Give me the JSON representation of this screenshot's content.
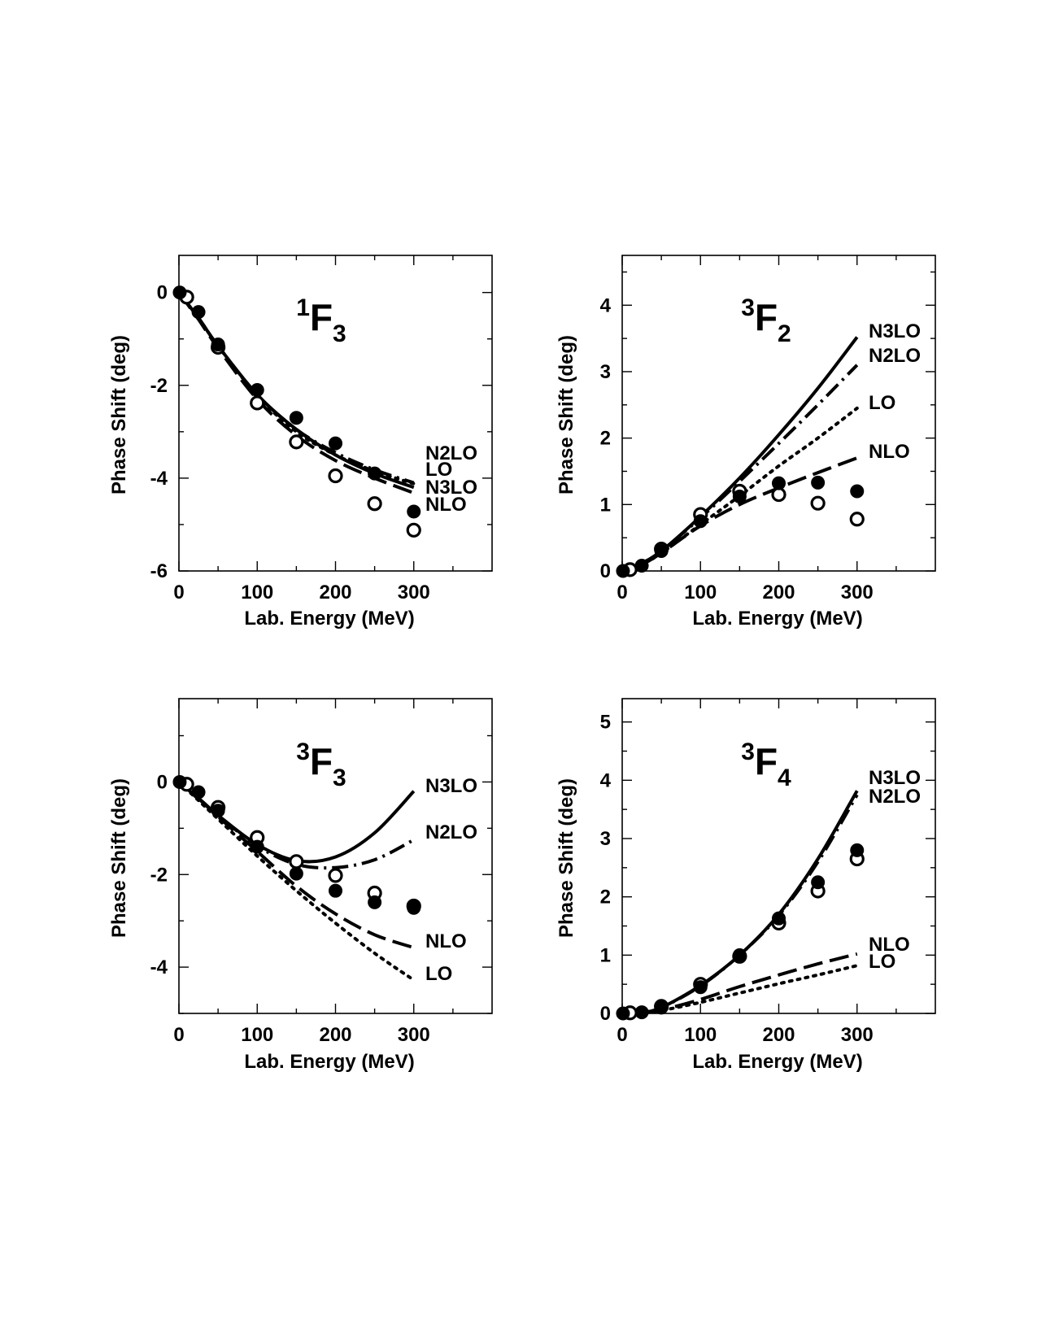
{
  "chart_data": [
    {
      "type": "line",
      "title_main": "F",
      "title_sup": "1",
      "title_sub": "3",
      "xlabel": "Lab. Energy (MeV)",
      "ylabel": "Phase Shift (deg)",
      "xlim": [
        0,
        400
      ],
      "ylim": [
        -6,
        0.8
      ],
      "xticks": [
        0,
        100,
        200,
        300
      ],
      "xticklabels": [
        "0",
        "100",
        "200",
        "300"
      ],
      "yticks": [
        -6,
        -4,
        -2,
        0
      ],
      "yticklabels": [
        "-6",
        "-4",
        "-2",
        "0"
      ],
      "xminor": [
        50,
        150,
        250,
        350
      ],
      "yminor": [
        -5,
        -3,
        -1
      ],
      "series": [
        {
          "name": "N2LO",
          "style": "dashdot",
          "x": [
            0,
            25,
            50,
            100,
            150,
            200,
            250,
            300
          ],
          "y": [
            0,
            -0.55,
            -1.15,
            -2.2,
            -2.95,
            -3.45,
            -3.82,
            -4.1
          ]
        },
        {
          "name": "LO",
          "style": "dotted",
          "x": [
            0,
            25,
            50,
            100,
            150,
            200,
            250,
            300
          ],
          "y": [
            0,
            -0.55,
            -1.15,
            -2.22,
            -3.0,
            -3.5,
            -3.85,
            -4.12
          ]
        },
        {
          "name": "N3LO",
          "style": "solid",
          "x": [
            0,
            25,
            50,
            100,
            150,
            200,
            250,
            300
          ],
          "y": [
            0,
            -0.55,
            -1.15,
            -2.2,
            -2.95,
            -3.5,
            -3.9,
            -4.2
          ]
        },
        {
          "name": "NLO",
          "style": "dashed",
          "x": [
            0,
            25,
            50,
            100,
            150,
            200,
            250,
            300
          ],
          "y": [
            0,
            -0.58,
            -1.2,
            -2.3,
            -3.08,
            -3.62,
            -4.0,
            -4.32
          ]
        }
      ],
      "points_filled": {
        "x": [
          1,
          25,
          50,
          100,
          150,
          200,
          250,
          300
        ],
        "y": [
          0,
          -0.42,
          -1.12,
          -2.1,
          -2.7,
          -3.25,
          -3.9,
          -4.72
        ]
      },
      "points_open": {
        "x": [
          10,
          50,
          100,
          150,
          200,
          250,
          300
        ],
        "y": [
          -0.1,
          -1.18,
          -2.38,
          -3.22,
          -3.95,
          -4.55,
          -5.12
        ]
      },
      "line_labels": [
        "N2LO",
        "LO",
        "N3LO",
        "NLO"
      ]
    },
    {
      "type": "line",
      "title_main": "F",
      "title_sup": "3",
      "title_sub": "2",
      "xlabel": "Lab. Energy (MeV)",
      "ylabel": "Phase Shift (deg)",
      "xlim": [
        0,
        400
      ],
      "ylim": [
        0,
        4.75
      ],
      "xticks": [
        0,
        100,
        200,
        300
      ],
      "xticklabels": [
        "0",
        "100",
        "200",
        "300"
      ],
      "yticks": [
        0,
        1,
        2,
        3,
        4
      ],
      "yticklabels": [
        "0",
        "1",
        "2",
        "3",
        "4"
      ],
      "xminor": [
        50,
        150,
        250,
        350
      ],
      "yminor": [
        0.5,
        1.5,
        2.5,
        3.5,
        4.5
      ],
      "series": [
        {
          "name": "N3LO",
          "style": "solid",
          "x": [
            0,
            25,
            50,
            100,
            150,
            200,
            250,
            300
          ],
          "y": [
            0,
            0.12,
            0.3,
            0.82,
            1.4,
            2.05,
            2.75,
            3.52
          ]
        },
        {
          "name": "N2LO",
          "style": "dashdot",
          "x": [
            0,
            25,
            50,
            100,
            150,
            200,
            250,
            300
          ],
          "y": [
            0,
            0.12,
            0.3,
            0.8,
            1.35,
            1.92,
            2.5,
            3.1
          ]
        },
        {
          "name": "LO",
          "style": "dotted",
          "x": [
            0,
            25,
            50,
            100,
            150,
            200,
            250,
            300
          ],
          "y": [
            0,
            0.1,
            0.27,
            0.7,
            1.13,
            1.58,
            2.0,
            2.45
          ]
        },
        {
          "name": "NLO",
          "style": "dashed",
          "x": [
            0,
            25,
            50,
            100,
            150,
            200,
            250,
            300
          ],
          "y": [
            0,
            0.1,
            0.27,
            0.68,
            1.0,
            1.25,
            1.48,
            1.7
          ]
        }
      ],
      "points_filled": {
        "x": [
          1,
          25,
          50,
          100,
          150,
          200,
          250,
          300
        ],
        "y": [
          0,
          0.08,
          0.3,
          0.75,
          1.12,
          1.32,
          1.33,
          1.2
        ]
      },
      "points_open": {
        "x": [
          10,
          50,
          100,
          150,
          200,
          250,
          300
        ],
        "y": [
          0.02,
          0.33,
          0.85,
          1.2,
          1.15,
          1.02,
          0.78
        ]
      },
      "line_labels": [
        "N3LO",
        "N2LO",
        "LO",
        "NLO"
      ]
    },
    {
      "type": "line",
      "title_main": "F",
      "title_sup": "3",
      "title_sub": "3",
      "xlabel": "Lab. Energy (MeV)",
      "ylabel": "Phase Shift (deg)",
      "xlim": [
        0,
        400
      ],
      "ylim": [
        -5,
        1.8
      ],
      "xticks": [
        0,
        100,
        200,
        300
      ],
      "xticklabels": [
        "0",
        "100",
        "200",
        "300"
      ],
      "yticks": [
        -4,
        -2,
        0
      ],
      "yticklabels": [
        "-4",
        "-2",
        "0"
      ],
      "xminor": [
        50,
        150,
        250,
        350
      ],
      "yminor": [
        -5,
        -3,
        -1,
        1
      ],
      "series": [
        {
          "name": "N3LO",
          "style": "solid",
          "x": [
            0,
            25,
            50,
            100,
            150,
            200,
            250,
            300
          ],
          "y": [
            0,
            -0.35,
            -0.72,
            -1.35,
            -1.7,
            -1.62,
            -1.1,
            -0.2
          ]
        },
        {
          "name": "N2LO",
          "style": "dashdot",
          "x": [
            0,
            25,
            50,
            100,
            150,
            200,
            250,
            300
          ],
          "y": [
            0,
            -0.35,
            -0.72,
            -1.38,
            -1.78,
            -1.85,
            -1.68,
            -1.25
          ]
        },
        {
          "name": "NLO",
          "style": "dashed",
          "x": [
            0,
            25,
            50,
            100,
            150,
            200,
            250,
            300
          ],
          "y": [
            0,
            -0.36,
            -0.75,
            -1.5,
            -2.25,
            -2.85,
            -3.3,
            -3.58
          ]
        },
        {
          "name": "LO",
          "style": "dotted",
          "x": [
            0,
            25,
            50,
            100,
            150,
            200,
            250,
            300
          ],
          "y": [
            0,
            -0.4,
            -0.8,
            -1.6,
            -2.35,
            -3.05,
            -3.7,
            -4.28
          ]
        }
      ],
      "points_filled": {
        "x": [
          1,
          25,
          50,
          100,
          150,
          200,
          250,
          300
        ],
        "y": [
          0,
          -0.22,
          -0.62,
          -1.4,
          -1.98,
          -2.35,
          -2.6,
          -2.72
        ]
      },
      "points_open": {
        "x": [
          10,
          50,
          100,
          150,
          200,
          250,
          300
        ],
        "y": [
          -0.05,
          -0.55,
          -1.2,
          -1.72,
          -2.02,
          -2.4,
          -2.68
        ]
      },
      "line_labels": [
        "N3LO",
        "N2LO",
        "NLO",
        "LO"
      ]
    },
    {
      "type": "line",
      "title_main": "F",
      "title_sup": "3",
      "title_sub": "4",
      "xlabel": "Lab. Energy (MeV)",
      "ylabel": "Phase Shift (deg)",
      "xlim": [
        0,
        400
      ],
      "ylim": [
        0,
        5.4
      ],
      "xticks": [
        0,
        100,
        200,
        300
      ],
      "xticklabels": [
        "0",
        "100",
        "200",
        "300"
      ],
      "yticks": [
        0,
        1,
        2,
        3,
        4,
        5
      ],
      "yticklabels": [
        "0",
        "1",
        "2",
        "3",
        "4",
        "5"
      ],
      "xminor": [
        50,
        150,
        250,
        350
      ],
      "yminor": [
        0.5,
        1.5,
        2.5,
        3.5,
        4.5
      ],
      "series": [
        {
          "name": "N3LO",
          "style": "solid",
          "x": [
            0,
            25,
            50,
            100,
            150,
            200,
            250,
            300
          ],
          "y": [
            0,
            0.02,
            0.1,
            0.48,
            1.0,
            1.7,
            2.65,
            3.82
          ]
        },
        {
          "name": "N2LO",
          "style": "dashdot",
          "x": [
            0,
            25,
            50,
            100,
            150,
            200,
            250,
            300
          ],
          "y": [
            0,
            0.02,
            0.1,
            0.47,
            1.0,
            1.68,
            2.6,
            3.75
          ]
        },
        {
          "name": "NLO",
          "style": "dashed",
          "x": [
            0,
            25,
            50,
            100,
            150,
            200,
            250,
            300
          ],
          "y": [
            0,
            0.01,
            0.06,
            0.24,
            0.46,
            0.66,
            0.85,
            1.02
          ]
        },
        {
          "name": "LO",
          "style": "dotted",
          "x": [
            0,
            25,
            50,
            100,
            150,
            200,
            250,
            300
          ],
          "y": [
            0,
            0.01,
            0.05,
            0.19,
            0.35,
            0.51,
            0.66,
            0.82
          ]
        }
      ],
      "points_filled": {
        "x": [
          1,
          25,
          50,
          100,
          150,
          200,
          250,
          300
        ],
        "y": [
          0,
          0.02,
          0.1,
          0.45,
          1.0,
          1.63,
          2.25,
          2.8
        ]
      },
      "points_open": {
        "x": [
          10,
          50,
          100,
          150,
          200,
          250,
          300
        ],
        "y": [
          0.01,
          0.12,
          0.5,
          0.98,
          1.55,
          2.1,
          2.65
        ]
      },
      "line_labels": [
        "N3LO",
        "N2LO",
        "NLO",
        "LO"
      ]
    }
  ]
}
